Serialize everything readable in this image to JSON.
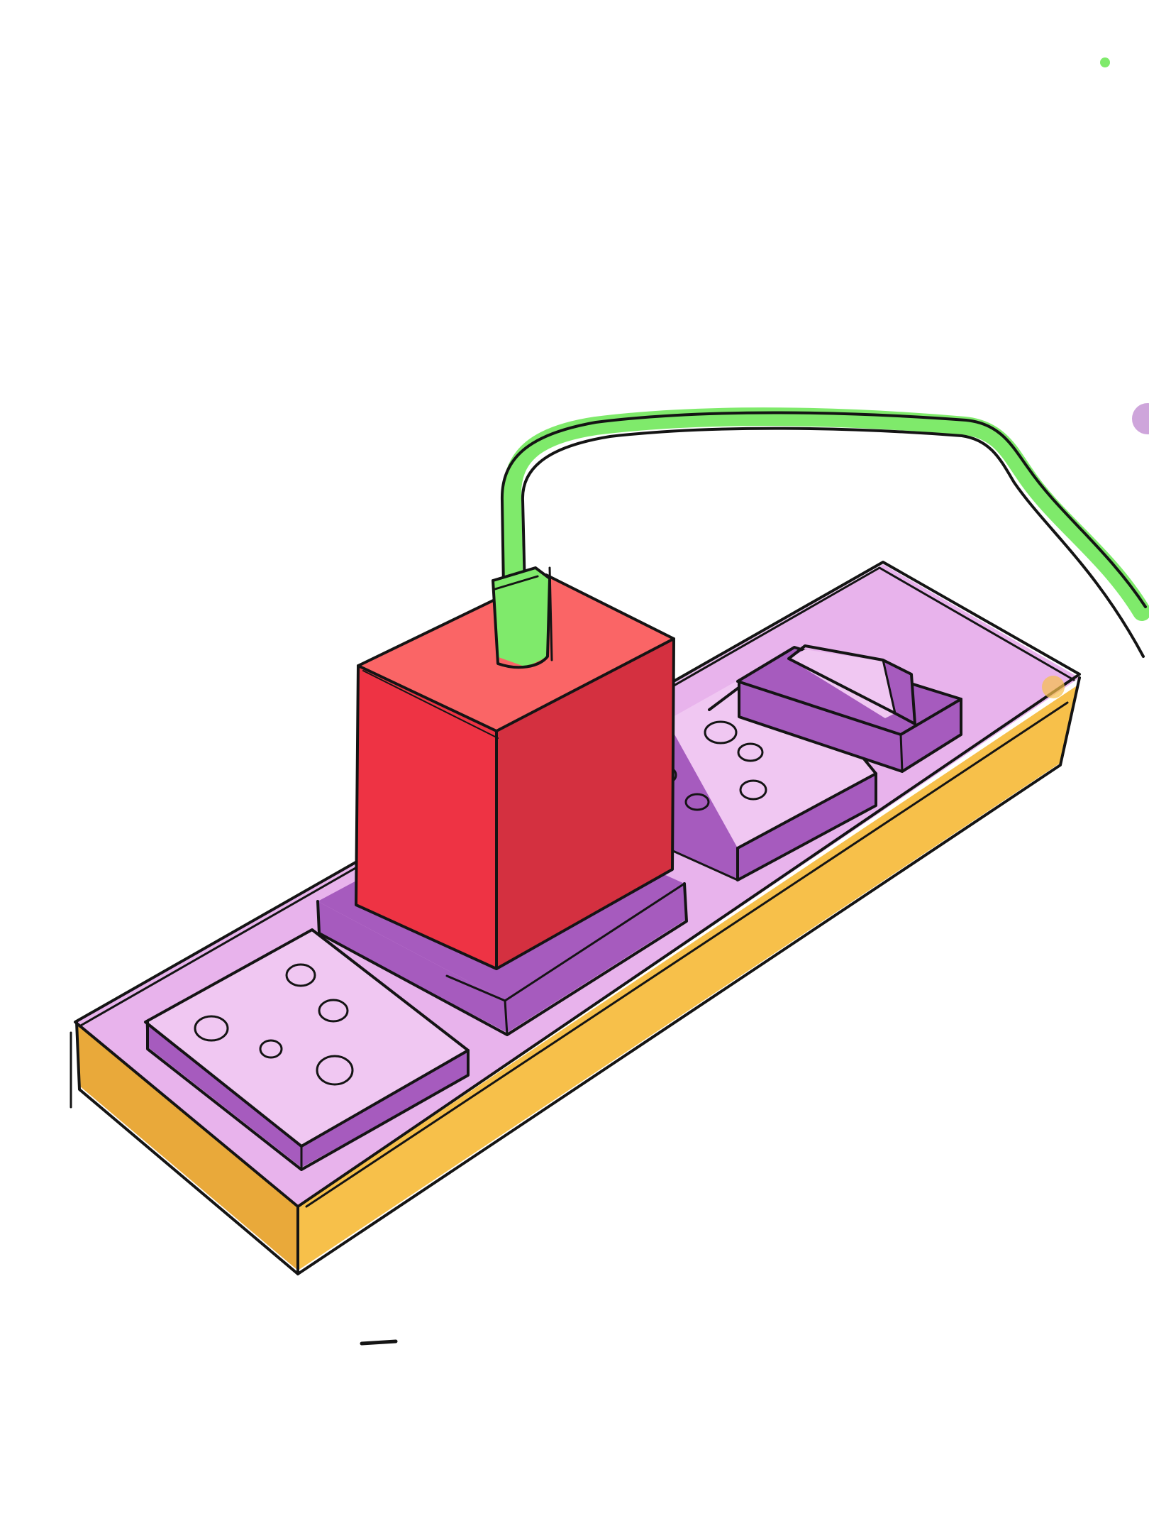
{
  "scene": {
    "subject": "power-strip-with-plugged-charger",
    "palette": {
      "background": "#ffffff",
      "strip_body": "#F7C04A",
      "strip_body_shade": "#E9A93A",
      "strip_top": "#E8B3EC",
      "socket_top": "#F0C7F2",
      "socket_side": "#A65BBE",
      "socket_hole": "#B568C8",
      "charger_front": "#EE3344",
      "charger_side": "#D43040",
      "charger_top": "#FA6566",
      "cable": "#7FEA6B",
      "ink": "#141414"
    },
    "outlets": [
      {
        "name": "outlet-left",
        "holes": 5
      },
      {
        "name": "outlet-middle",
        "holes": 0,
        "occupied_by": "charger"
      },
      {
        "name": "outlet-right",
        "holes": 5
      }
    ],
    "switch": {
      "name": "rocker-switch",
      "state": "on"
    }
  }
}
